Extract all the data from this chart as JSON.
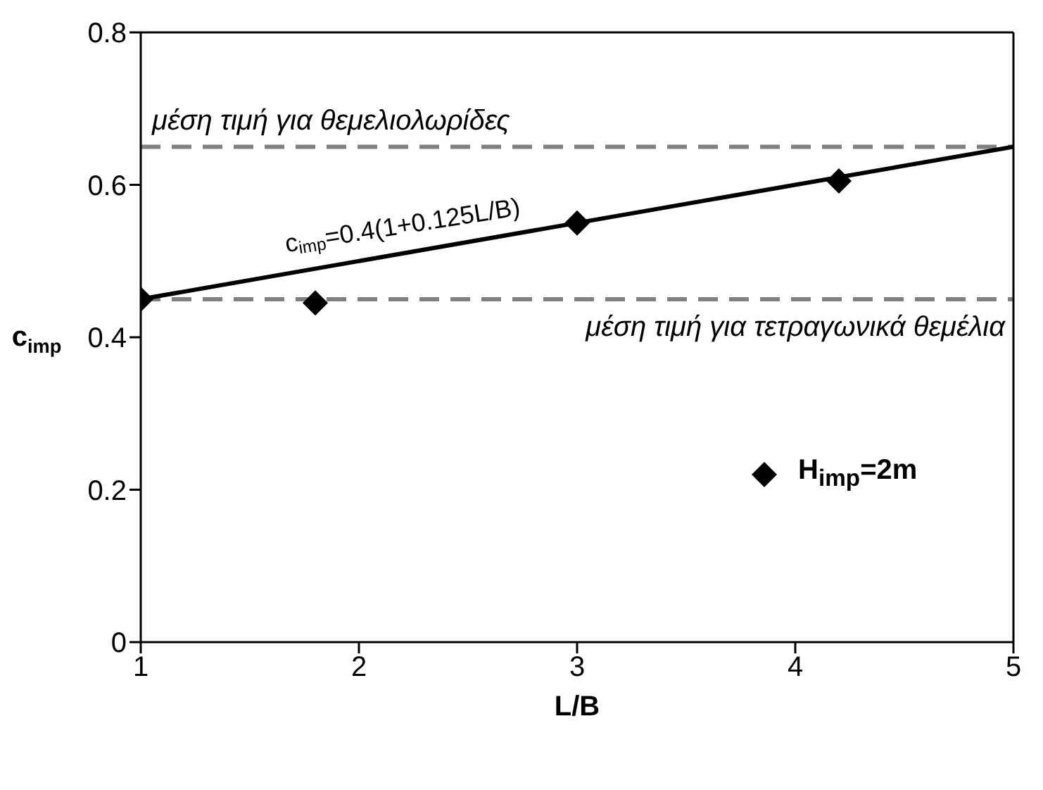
{
  "chart_data": {
    "type": "scatter",
    "xlabel": "L/B",
    "ylabel": "c$_{imp}$",
    "xlim": [
      1,
      5
    ],
    "xticks": [
      1,
      2,
      3,
      4,
      5
    ],
    "ylim": [
      0,
      0.8
    ],
    "yticks": [
      0,
      0.2,
      0.4,
      0.6,
      0.8
    ],
    "marker": "diamond",
    "legend": "bottom right",
    "series": [
      {
        "name": "H$_{imp}$=2m",
        "color": "#000000",
        "x": [
          1,
          1.8,
          3,
          4.2
        ],
        "values": [
          0.45,
          0.445,
          0.55,
          0.605
        ]
      },
      {
        "type": "line",
        "color": "#000000",
        "line_style": "solid",
        "marker": "none",
        "x": [
          1,
          5
        ],
        "values": [
          0.45,
          0.65
        ]
      }
    ],
    "ref_lines": [
      {
        "axis": "y",
        "value": 0.65,
        "label": "μέση τιμή για θεμελιολωρίδες",
        "color": "#808080",
        "line_style": "dashed"
      },
      {
        "axis": "y",
        "value": 0.45,
        "label": "μέση τιμή για τετραγωνικά θεμέλια",
        "color": "#808080",
        "line_style": "dashed"
      }
    ],
    "annotations": [
      "c$_{imp}$=0.4(1+0.125L/B)"
    ]
  }
}
